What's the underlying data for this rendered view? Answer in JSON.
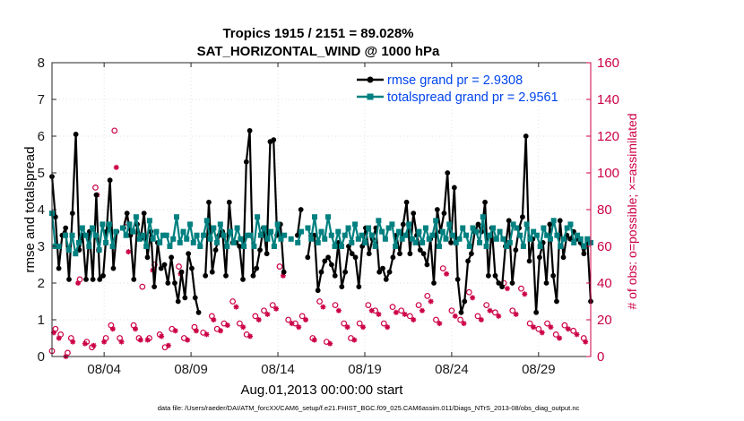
{
  "chart_data": {
    "type": "line",
    "title": "Tropics 1915 / 2151 = 89.028%",
    "subtitle": "SAT_HORIZONTAL_WIND @ 1000 hPa",
    "xlabel": "Aug.01,2013 00:00:00 start",
    "ylabel": "rmse and totalspread",
    "y2label": "# of obs: o=possible; ×=assimilated",
    "footnote": "data file: /Users/raeder/DAI/ATM_forcXX/CAM6_setup/f.e21.FHIST_BGC.f09_025.CAM6assim.011/Diags_NTrS_2013-08/obs_diag_output.nc",
    "xlim": [
      1,
      32
    ],
    "ylim": [
      0,
      8
    ],
    "y2lim": [
      0,
      160
    ],
    "yticks": [
      "0",
      "1",
      "2",
      "3",
      "4",
      "5",
      "6",
      "7",
      "8"
    ],
    "y2ticks": [
      "0",
      "20",
      "40",
      "60",
      "80",
      "100",
      "120",
      "140",
      "160"
    ],
    "xticks": [
      {
        "label": "08/04",
        "value": 4
      },
      {
        "label": "08/09",
        "value": 9
      },
      {
        "label": "08/14",
        "value": 14
      },
      {
        "label": "08/19",
        "value": 19
      },
      {
        "label": "08/24",
        "value": 24
      },
      {
        "label": "08/29",
        "value": 29
      }
    ],
    "legend_position": "top-right",
    "colors": {
      "rmse": "#000000",
      "spread": "#008080",
      "obs": "#cc0044",
      "legend_text": "#0044ee"
    },
    "series": [
      {
        "name": "rmse grand pr = 2.9308",
        "key": "rmse",
        "values": [
          4.9,
          3.8,
          2.4,
          3.3,
          3.5,
          2.1,
          3.9,
          6.05,
          2.9,
          3.3,
          2.1,
          3.4,
          2.1,
          4.4,
          2.1,
          2.2,
          3.4,
          4.8,
          2.4,
          3.4,
          null,
          3.5,
          3.9,
          3.3,
          2.1,
          3.6,
          3.2,
          3.9,
          2.7,
          3.4,
          1.9,
          3.1,
          2.4,
          2.5,
          2.0,
          2.7,
          2.0,
          1.5,
          2.3,
          1.6,
          2.8,
          2.4,
          1.6,
          1.2,
          null,
          2.2,
          4.2,
          2.3,
          2.9,
          3.3,
          3.4,
          2.2,
          4.2,
          3.1,
          3.1,
          3.0,
          2.1,
          5.3,
          6.15,
          2.2,
          2.4,
          2.9,
          3.5,
          2.8,
          5.85,
          5.9,
          3.3,
          3.6,
          2.3,
          null,
          null,
          null,
          3.3,
          4.0,
          null,
          2.7,
          3.3,
          3.3,
          1.8,
          2.3,
          2.6,
          2.7,
          2.5,
          2.2,
          3.1,
          1.9,
          2.3,
          3.0,
          2.8,
          2.7,
          1.9,
          3.0,
          3.5,
          2.8,
          3.2,
          3.5,
          2.3,
          2.4,
          2.1,
          2.3,
          2.7,
          3.3,
          2.8,
          3.6,
          4.2,
          2.8,
          3.9,
          3.3,
          2.9,
          2.8,
          2.5,
          3.2,
          2.0,
          4.0,
          3.4,
          3.9,
          5.0,
          3.1,
          4.6,
          2.1,
          1.2,
          1.5,
          2.6,
          2.8,
          3.4,
          3.6,
          3.4,
          4.2,
          2.2,
          3.5,
          2.2,
          2.0,
          1.9,
          3.0,
          3.7,
          2.0,
          2.9,
          3.5,
          3.8,
          6.0,
          2.6,
          3.2,
          1.2,
          2.7,
          3.1,
          2.0,
          3.6,
          2.2,
          1.5,
          3.7,
          2.7,
          3.3,
          3.2,
          3.4,
          3.2,
          3.1,
          2.8,
          3.2,
          1.5
        ]
      },
      {
        "name": "totalspread grand pr = 2.9561",
        "key": "spread",
        "values": [
          3.9,
          3.0,
          3.0,
          null,
          3.3,
          2.9,
          3.3,
          2.8,
          3.1,
          3.5,
          3.3,
          3.0,
          3.5,
          3.3,
          2.9,
          3.6,
          3.1,
          3.6,
          3.0,
          3.4,
          null,
          3.5,
          3.3,
          3.6,
          3.4,
          3.8,
          3.2,
          3.3,
          3.0,
          3.7,
          3.2,
          3.4,
          3.1,
          3.3,
          3.3,
          3.0,
          3.2,
          3.8,
          3.1,
          3.4,
          3.2,
          3.6,
          3.1,
          3.3,
          3.0,
          3.3,
          3.7,
          3.2,
          3.5,
          3.1,
          3.6,
          3.3,
          3.0,
          3.4,
          3.1,
          3.5,
          3.2,
          3.0,
          3.3,
          3.3,
          3.0,
          3.8,
          3.3,
          3.5,
          3.2,
          3.4,
          3.0,
          3.6,
          3.2,
          3.3,
          null,
          3.2,
          null,
          3.1,
          3.4,
          null,
          3.5,
          3.2,
          3.8,
          3.1,
          3.4,
          3.2,
          3.8,
          3.3,
          3.0,
          3.4,
          3.0,
          3.3,
          3.5,
          3.1,
          3.6,
          3.2,
          3.3,
          3.1,
          3.5,
          3.3,
          3.0,
          3.7,
          3.4,
          3.2,
          3.5,
          3.6,
          3.0,
          3.4,
          3.2,
          3.3,
          3.6,
          3.2,
          3.1,
          3.4,
          3.1,
          3.5,
          3.2,
          3.3,
          3.7,
          3.0,
          3.4,
          3.2,
          3.6,
          3.3,
          3.1,
          3.2,
          3.5,
          3.3,
          3.0,
          3.5,
          3.4,
          3.1,
          3.8,
          3.0,
          3.3,
          3.5,
          3.2,
          3.4,
          3.2,
          3.0,
          3.1,
          3.6,
          3.5,
          3.3,
          3.0,
          3.6,
          3.2,
          3.4,
          3.3,
          3.0,
          3.5,
          3.3,
          3.2,
          3.7,
          3.3,
          3.0,
          3.2,
          3.5,
          3.6,
          3.1,
          3.3,
          3.2,
          3.0,
          3.2,
          3.1
        ]
      }
    ],
    "obs_possible": [
      {
        "x": 1.0,
        "y": 3
      },
      {
        "x": 1.2,
        "y": 15
      },
      {
        "x": 1.5,
        "y": 12
      },
      {
        "x": 1.9,
        "y": 2
      },
      {
        "x": 2.1,
        "y": 10
      },
      {
        "x": 2.6,
        "y": 42
      },
      {
        "x": 3.0,
        "y": 8
      },
      {
        "x": 3.3,
        "y": 5
      },
      {
        "x": 3.5,
        "y": 92
      },
      {
        "x": 3.7,
        "y": 58
      },
      {
        "x": 4.1,
        "y": 10
      },
      {
        "x": 4.4,
        "y": 17
      },
      {
        "x": 4.6,
        "y": 123
      },
      {
        "x": 4.9,
        "y": 10
      },
      {
        "x": 5.3,
        "y": 73
      },
      {
        "x": 5.7,
        "y": 17
      },
      {
        "x": 6.0,
        "y": 10
      },
      {
        "x": 6.2,
        "y": 38
      },
      {
        "x": 6.6,
        "y": 10
      },
      {
        "x": 6.9,
        "y": 50
      },
      {
        "x": 7.2,
        "y": 12
      },
      {
        "x": 7.5,
        "y": 5
      },
      {
        "x": 7.9,
        "y": 15
      },
      {
        "x": 8.3,
        "y": 49
      },
      {
        "x": 8.6,
        "y": 10
      },
      {
        "x": 9.2,
        "y": 16
      },
      {
        "x": 9.7,
        "y": 13
      },
      {
        "x": 10.2,
        "y": 22
      },
      {
        "x": 10.5,
        "y": 15
      },
      {
        "x": 10.9,
        "y": 18
      },
      {
        "x": 11.4,
        "y": 30
      },
      {
        "x": 11.8,
        "y": 18
      },
      {
        "x": 12.2,
        "y": 12
      },
      {
        "x": 12.7,
        "y": 22
      },
      {
        "x": 13.2,
        "y": 25
      },
      {
        "x": 13.7,
        "y": 28
      },
      {
        "x": 14.1,
        "y": 49
      },
      {
        "x": 14.6,
        "y": 20
      },
      {
        "x": 15.0,
        "y": 18
      },
      {
        "x": 15.4,
        "y": 22
      },
      {
        "x": 16.0,
        "y": 10
      },
      {
        "x": 16.4,
        "y": 30
      },
      {
        "x": 16.8,
        "y": 8
      },
      {
        "x": 17.3,
        "y": 28
      },
      {
        "x": 17.8,
        "y": 18
      },
      {
        "x": 18.2,
        "y": 10
      },
      {
        "x": 18.7,
        "y": 18
      },
      {
        "x": 19.2,
        "y": 28
      },
      {
        "x": 19.6,
        "y": 25
      },
      {
        "x": 20.1,
        "y": 18
      },
      {
        "x": 20.6,
        "y": 27
      },
      {
        "x": 21.1,
        "y": 25
      },
      {
        "x": 21.6,
        "y": 22
      },
      {
        "x": 22.1,
        "y": 28
      },
      {
        "x": 22.6,
        "y": 33
      },
      {
        "x": 23.1,
        "y": 20
      },
      {
        "x": 23.5,
        "y": 48
      },
      {
        "x": 24.0,
        "y": 25
      },
      {
        "x": 24.5,
        "y": 20
      },
      {
        "x": 25.0,
        "y": 35
      },
      {
        "x": 25.5,
        "y": 22
      },
      {
        "x": 26.0,
        "y": 28
      },
      {
        "x": 26.5,
        "y": 24
      },
      {
        "x": 27.0,
        "y": 40
      },
      {
        "x": 27.5,
        "y": 25
      },
      {
        "x": 28.0,
        "y": 37
      },
      {
        "x": 28.5,
        "y": 18
      },
      {
        "x": 29.0,
        "y": 15
      },
      {
        "x": 29.5,
        "y": 18
      },
      {
        "x": 30.0,
        "y": 12
      },
      {
        "x": 30.5,
        "y": 17
      },
      {
        "x": 31.0,
        "y": 14
      },
      {
        "x": 31.6,
        "y": 10
      }
    ],
    "obs_assimilated": [
      {
        "x": 1.1,
        "y": 13
      },
      {
        "x": 1.4,
        "y": 10
      },
      {
        "x": 1.8,
        "y": 0
      },
      {
        "x": 2.2,
        "y": 8
      },
      {
        "x": 2.5,
        "y": 40
      },
      {
        "x": 2.9,
        "y": 7
      },
      {
        "x": 3.4,
        "y": 6
      },
      {
        "x": 3.6,
        "y": 88
      },
      {
        "x": 4.0,
        "y": 8
      },
      {
        "x": 4.5,
        "y": 15
      },
      {
        "x": 4.7,
        "y": 103
      },
      {
        "x": 5.0,
        "y": 8
      },
      {
        "x": 5.4,
        "y": 57
      },
      {
        "x": 5.8,
        "y": 15
      },
      {
        "x": 6.1,
        "y": 9
      },
      {
        "x": 6.5,
        "y": 9
      },
      {
        "x": 6.8,
        "y": 47
      },
      {
        "x": 7.3,
        "y": 11
      },
      {
        "x": 7.7,
        "y": 6
      },
      {
        "x": 8.1,
        "y": 14
      },
      {
        "x": 8.4,
        "y": 45
      },
      {
        "x": 8.8,
        "y": 9
      },
      {
        "x": 9.3,
        "y": 14
      },
      {
        "x": 9.9,
        "y": 12
      },
      {
        "x": 10.3,
        "y": 20
      },
      {
        "x": 10.7,
        "y": 14
      },
      {
        "x": 11.1,
        "y": 17
      },
      {
        "x": 11.6,
        "y": 27
      },
      {
        "x": 12.0,
        "y": 16
      },
      {
        "x": 12.4,
        "y": 11
      },
      {
        "x": 12.9,
        "y": 20
      },
      {
        "x": 13.4,
        "y": 23
      },
      {
        "x": 13.9,
        "y": 26
      },
      {
        "x": 14.3,
        "y": 44
      },
      {
        "x": 14.8,
        "y": 18
      },
      {
        "x": 15.2,
        "y": 16
      },
      {
        "x": 15.6,
        "y": 20
      },
      {
        "x": 16.1,
        "y": 9
      },
      {
        "x": 16.6,
        "y": 27
      },
      {
        "x": 17.0,
        "y": 7
      },
      {
        "x": 17.5,
        "y": 25
      },
      {
        "x": 18.0,
        "y": 16
      },
      {
        "x": 18.4,
        "y": 9
      },
      {
        "x": 18.9,
        "y": 16
      },
      {
        "x": 19.4,
        "y": 25
      },
      {
        "x": 19.8,
        "y": 23
      },
      {
        "x": 20.3,
        "y": 16
      },
      {
        "x": 20.8,
        "y": 24
      },
      {
        "x": 21.3,
        "y": 23
      },
      {
        "x": 21.8,
        "y": 20
      },
      {
        "x": 22.3,
        "y": 25
      },
      {
        "x": 22.8,
        "y": 30
      },
      {
        "x": 23.3,
        "y": 18
      },
      {
        "x": 23.7,
        "y": 45
      },
      {
        "x": 24.2,
        "y": 22
      },
      {
        "x": 24.7,
        "y": 18
      },
      {
        "x": 25.2,
        "y": 32
      },
      {
        "x": 25.7,
        "y": 20
      },
      {
        "x": 26.2,
        "y": 25
      },
      {
        "x": 26.7,
        "y": 22
      },
      {
        "x": 27.2,
        "y": 37
      },
      {
        "x": 27.7,
        "y": 23
      },
      {
        "x": 28.2,
        "y": 34
      },
      {
        "x": 28.7,
        "y": 16
      },
      {
        "x": 29.2,
        "y": 13
      },
      {
        "x": 29.7,
        "y": 16
      },
      {
        "x": 30.2,
        "y": 10
      },
      {
        "x": 30.7,
        "y": 15
      },
      {
        "x": 31.2,
        "y": 12
      },
      {
        "x": 31.7,
        "y": 8
      }
    ]
  }
}
